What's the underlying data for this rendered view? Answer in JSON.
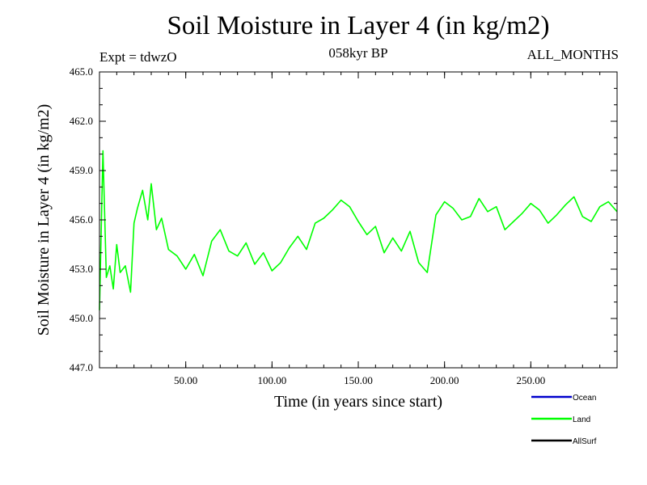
{
  "chart_data": {
    "type": "line",
    "title": "Soil Moisture in Layer 4 (in kg/m2)",
    "subtitle": "058kyr BP",
    "left_label": "Expt = tdwzO",
    "right_label": "ALL_MONTHS",
    "xlabel": "Time (in years since start)",
    "ylabel": "Soil Moisture in Layer 4 (in kg/m2)",
    "xlim": [
      0,
      300
    ],
    "ylim": [
      447,
      465
    ],
    "xticks": [
      50,
      100,
      150,
      200,
      250
    ],
    "xtick_labels": [
      "50.00",
      "100.00",
      "150.00",
      "200.00",
      "250.00"
    ],
    "yticks": [
      447,
      450,
      453,
      456,
      459,
      462,
      465
    ],
    "ytick_labels": [
      "447.0",
      "450.0",
      "453.0",
      "456.0",
      "459.0",
      "462.0",
      "465.0"
    ],
    "legend": [
      {
        "name": "Ocean",
        "color": "#0000cc"
      },
      {
        "name": "Land",
        "color": "#00ff00"
      },
      {
        "name": "AllSurf",
        "color": "#000000"
      }
    ],
    "series": [
      {
        "name": "Land",
        "color": "#00ff00",
        "x": [
          0,
          2,
          4,
          6,
          8,
          10,
          12,
          15,
          18,
          20,
          22,
          25,
          28,
          30,
          33,
          36,
          40,
          45,
          50,
          55,
          60,
          65,
          70,
          75,
          80,
          85,
          90,
          95,
          100,
          105,
          110,
          115,
          120,
          125,
          130,
          135,
          140,
          145,
          150,
          155,
          160,
          165,
          170,
          175,
          180,
          185,
          190,
          195,
          200,
          205,
          210,
          215,
          220,
          225,
          230,
          235,
          240,
          245,
          250,
          255,
          260,
          265,
          270,
          275,
          280,
          285,
          290,
          295,
          300
        ],
        "y": [
          450.5,
          460.2,
          452.5,
          453.2,
          451.8,
          454.5,
          452.8,
          453.2,
          451.6,
          455.8,
          456.7,
          457.8,
          456.0,
          458.2,
          455.4,
          456.1,
          454.2,
          453.8,
          453.0,
          453.9,
          452.6,
          454.7,
          455.4,
          454.1,
          453.8,
          454.6,
          453.3,
          454.0,
          452.9,
          453.4,
          454.3,
          455.0,
          454.2,
          455.8,
          456.1,
          456.6,
          457.2,
          456.8,
          455.9,
          455.1,
          455.6,
          454.0,
          454.9,
          454.1,
          455.3,
          453.4,
          452.8,
          456.3,
          457.1,
          456.7,
          456.0,
          456.2,
          457.3,
          456.5,
          456.8,
          455.4,
          455.9,
          456.4,
          457.0,
          456.6,
          455.8,
          456.3,
          456.9,
          457.4,
          456.2,
          455.9,
          456.8,
          457.1,
          456.5
        ]
      }
    ]
  }
}
